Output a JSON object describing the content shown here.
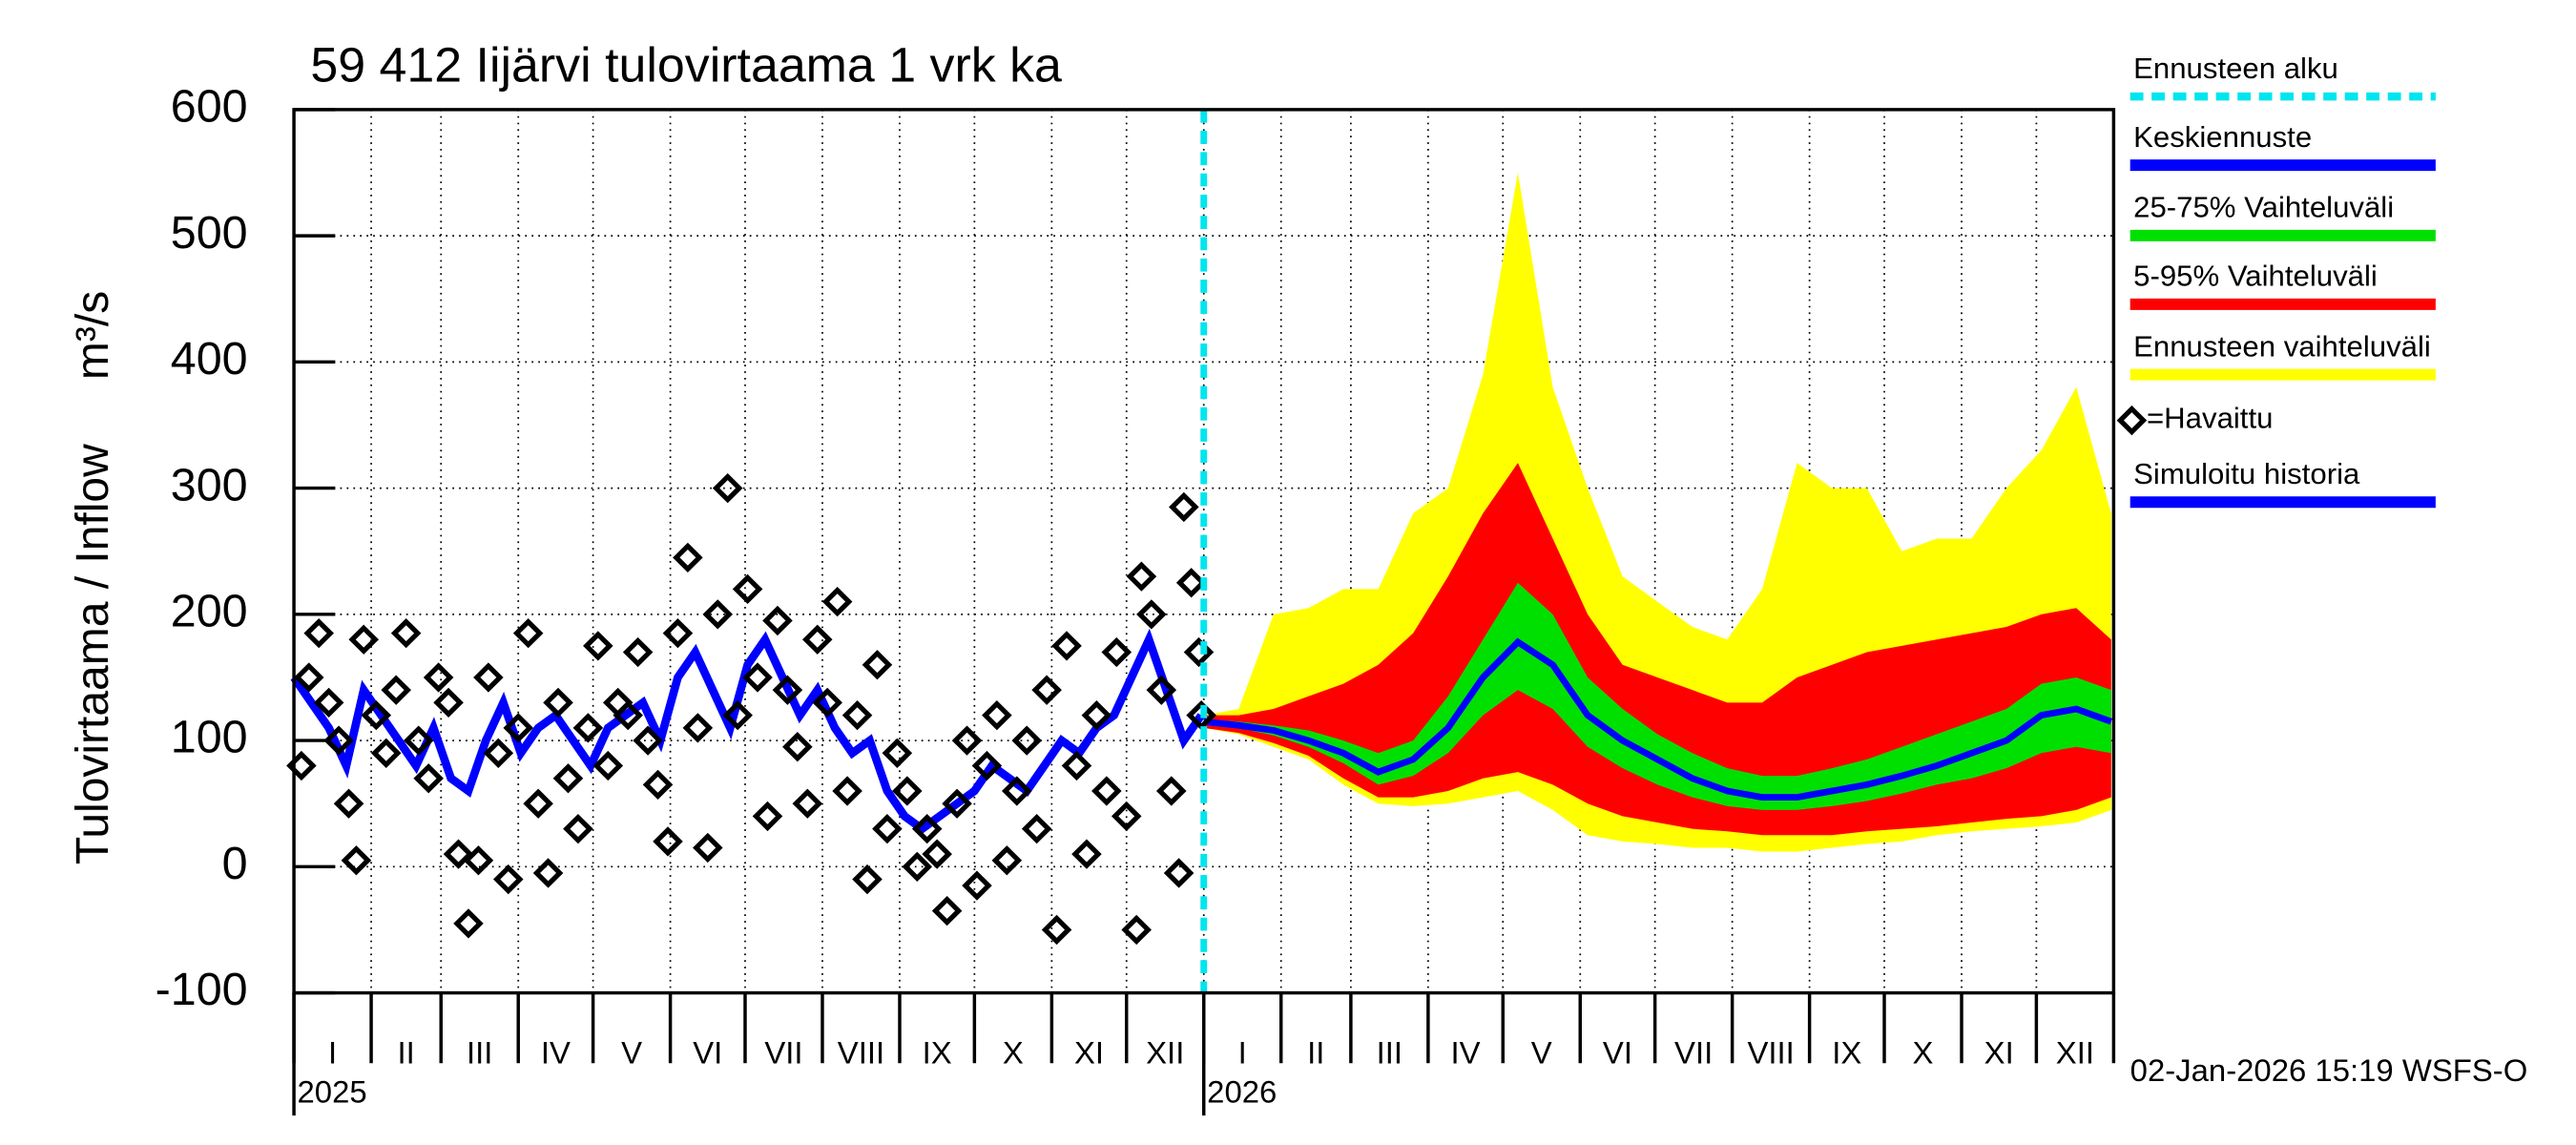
{
  "chart_data": {
    "type": "line",
    "title": "59 412 Iijärvi tulovirtaama 1 vrk ka",
    "y_label": "Tulovirtaama / Inflow",
    "y_unit": "m³/s",
    "footer": "02-Jan-2026 15:19 WSFS-O",
    "ylim": [
      -100,
      600
    ],
    "yticks": [
      -100,
      0,
      100,
      200,
      300,
      400,
      500,
      600
    ],
    "xlim": [
      0,
      730
    ],
    "xticks": [
      0,
      31,
      59,
      90,
      120,
      151,
      181,
      212,
      243,
      273,
      304,
      334,
      365,
      396,
      424,
      455,
      485,
      516,
      546,
      577,
      608,
      638,
      669,
      699,
      730
    ],
    "month_labels": [
      "I",
      "II",
      "III",
      "IV",
      "V",
      "VI",
      "VII",
      "VIII",
      "IX",
      "X",
      "XI",
      "XII",
      "I",
      "II",
      "III",
      "IV",
      "V",
      "VI",
      "VII",
      "VIII",
      "IX",
      "X",
      "XI",
      "XII"
    ],
    "years": [
      {
        "value": 0,
        "label": "2025"
      },
      {
        "value": 365,
        "label": "2026"
      }
    ],
    "grid": true,
    "forecast_x": [
      365,
      379,
      393,
      407,
      421,
      435,
      449,
      463,
      477,
      491,
      505,
      519,
      533,
      547,
      561,
      575,
      589,
      603,
      617,
      631,
      645,
      659,
      673,
      687,
      701,
      715,
      729
    ],
    "series": [
      {
        "name": "Ennusteen alku",
        "kind": "vline",
        "color": "#00e5ee",
        "x": 365
      },
      {
        "name": "Keskiennuste",
        "kind": "median",
        "color": "#0000ff",
        "values": [
          115,
          112,
          108,
          100,
          90,
          75,
          85,
          110,
          150,
          178,
          160,
          120,
          100,
          85,
          70,
          60,
          55,
          55,
          60,
          65,
          72,
          80,
          90,
          100,
          120,
          125,
          115
        ]
      },
      {
        "name": "25-75% Vaihteluväli",
        "kind": "band",
        "color": "#00e000",
        "lower": [
          113,
          110,
          104,
          95,
          82,
          65,
          72,
          90,
          120,
          140,
          125,
          95,
          78,
          65,
          55,
          48,
          45,
          45,
          48,
          52,
          58,
          65,
          70,
          78,
          90,
          95,
          90
        ],
        "upper": [
          117,
          115,
          112,
          108,
          100,
          90,
          100,
          135,
          180,
          225,
          200,
          150,
          125,
          105,
          90,
          78,
          72,
          72,
          78,
          85,
          95,
          105,
          115,
          125,
          145,
          150,
          140
        ]
      },
      {
        "name": "5-95% Vaihteluväli",
        "kind": "band",
        "color": "#ff0000",
        "lower": [
          110,
          106,
          98,
          88,
          70,
          55,
          55,
          60,
          70,
          75,
          65,
          50,
          40,
          35,
          30,
          28,
          25,
          25,
          25,
          28,
          30,
          32,
          35,
          38,
          40,
          45,
          55
        ],
        "upper": [
          120,
          120,
          125,
          135,
          145,
          160,
          185,
          230,
          280,
          320,
          260,
          200,
          160,
          150,
          140,
          130,
          130,
          150,
          160,
          170,
          175,
          180,
          185,
          190,
          200,
          205,
          180
        ]
      },
      {
        "name": "Ennusteen vaihteluväli",
        "kind": "band",
        "color": "#ffff00",
        "lower": [
          110,
          105,
          95,
          85,
          65,
          50,
          48,
          50,
          55,
          60,
          45,
          25,
          20,
          18,
          15,
          15,
          12,
          12,
          15,
          18,
          20,
          25,
          28,
          30,
          32,
          35,
          45
        ],
        "upper": [
          120,
          125,
          200,
          205,
          220,
          220,
          280,
          300,
          390,
          550,
          380,
          300,
          230,
          210,
          190,
          180,
          220,
          320,
          300,
          300,
          250,
          260,
          260,
          300,
          330,
          380,
          280
        ]
      },
      {
        "name": "=Havaittu",
        "kind": "points",
        "color": "#000000",
        "x": [
          3,
          6,
          10,
          14,
          18,
          22,
          25,
          28,
          33,
          37,
          41,
          45,
          50,
          54,
          58,
          62,
          66,
          70,
          74,
          78,
          82,
          86,
          90,
          94,
          98,
          102,
          106,
          110,
          114,
          118,
          122,
          126,
          130,
          134,
          138,
          142,
          146,
          150,
          154,
          158,
          162,
          166,
          170,
          174,
          178,
          182,
          186,
          190,
          194,
          198,
          202,
          206,
          210,
          214,
          218,
          222,
          226,
          230,
          234,
          238,
          242,
          246,
          250,
          254,
          258,
          262,
          266,
          270,
          274,
          278,
          282,
          286,
          290,
          294,
          298,
          302,
          306,
          310,
          314,
          318,
          322,
          326,
          330,
          334,
          338,
          340,
          344,
          348,
          352,
          355,
          357,
          360,
          363,
          364
        ],
        "values": [
          80,
          150,
          185,
          130,
          100,
          50,
          5,
          180,
          120,
          90,
          140,
          185,
          100,
          70,
          150,
          130,
          10,
          -45,
          5,
          150,
          90,
          -10,
          110,
          185,
          50,
          -5,
          130,
          70,
          30,
          110,
          175,
          80,
          130,
          120,
          170,
          100,
          65,
          20,
          185,
          245,
          110,
          15,
          200,
          300,
          120,
          220,
          150,
          40,
          195,
          140,
          95,
          50,
          180,
          130,
          210,
          60,
          120,
          -10,
          160,
          30,
          90,
          60,
          0,
          30,
          10,
          -35,
          50,
          100,
          -15,
          80,
          120,
          5,
          60,
          100,
          30,
          140,
          -50,
          175,
          80,
          10,
          120,
          60,
          170,
          40,
          -50,
          230,
          200,
          140,
          60,
          -5,
          285,
          225,
          170,
          120
        ]
      },
      {
        "name": "Simuloitu historia",
        "kind": "line",
        "color": "#0000ff",
        "x": [
          0,
          7,
          14,
          21,
          28,
          35,
          42,
          49,
          56,
          63,
          70,
          77,
          84,
          91,
          98,
          105,
          112,
          119,
          126,
          133,
          140,
          147,
          154,
          161,
          168,
          175,
          182,
          189,
          196,
          203,
          210,
          217,
          224,
          231,
          238,
          245,
          252,
          259,
          266,
          273,
          280,
          287,
          294,
          301,
          308,
          315,
          322,
          329,
          336,
          343,
          350,
          357,
          364
        ],
        "values": [
          150,
          130,
          110,
          80,
          140,
          120,
          100,
          80,
          110,
          70,
          60,
          100,
          130,
          90,
          110,
          120,
          100,
          80,
          110,
          120,
          130,
          100,
          150,
          170,
          140,
          110,
          160,
          180,
          150,
          120,
          140,
          110,
          90,
          100,
          60,
          40,
          30,
          40,
          50,
          60,
          80,
          70,
          60,
          80,
          100,
          90,
          110,
          120,
          150,
          180,
          140,
          100,
          120
        ]
      }
    ]
  }
}
